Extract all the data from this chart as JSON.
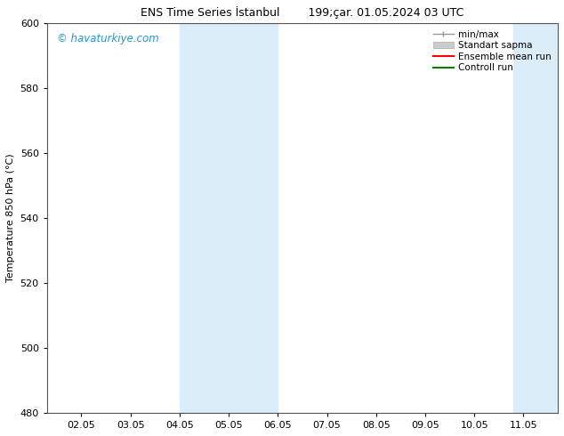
{
  "title_left": "ENS Time Series İstanbul",
  "title_right": "199;çar. 01.05.2024 03 UTC",
  "ylabel": "Temperature 850 hPa (°C)",
  "ylim": [
    480,
    600
  ],
  "yticks": [
    480,
    500,
    520,
    540,
    560,
    580,
    600
  ],
  "xtick_labels": [
    "02.05",
    "03.05",
    "04.05",
    "05.05",
    "06.05",
    "07.05",
    "08.05",
    "09.05",
    "10.05",
    "11.05"
  ],
  "xtick_positions": [
    0,
    1,
    2,
    3,
    4,
    5,
    6,
    7,
    8,
    9
  ],
  "xlim": [
    -0.7,
    9.7
  ],
  "shaded_bands": [
    {
      "x_start": 2.0,
      "x_end": 4.0,
      "color": "#daedf8"
    },
    {
      "x_start": 8.8,
      "x_end": 9.7,
      "color": "#daedf8"
    }
  ],
  "watermark_text": "© havaturkiye.com",
  "watermark_color": "#2299cc",
  "bg_color": "#ffffff",
  "plot_bg_color": "#ffffff",
  "spine_color": "#555555",
  "title_fontsize": 9,
  "ylabel_fontsize": 8,
  "tick_fontsize": 8,
  "legend_fontsize": 7.5
}
